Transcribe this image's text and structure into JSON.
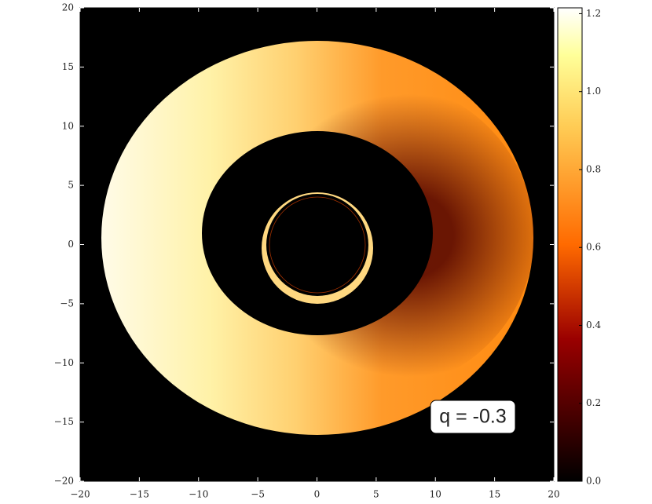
{
  "chart_data": {
    "type": "image",
    "annotation": "q = -0.3",
    "colormap": "afmhot",
    "xlim": [
      -20,
      20
    ],
    "ylim": [
      -20,
      20
    ],
    "xticks": [
      {
        "value": -20,
        "label": "−20"
      },
      {
        "value": -15,
        "label": "−15"
      },
      {
        "value": -10,
        "label": "−10"
      },
      {
        "value": -5,
        "label": "−5"
      },
      0,
      5,
      10,
      15,
      20
    ],
    "yticks": [
      {
        "value": -20,
        "label": "−20"
      },
      {
        "value": -15,
        "label": "−15"
      },
      {
        "value": -10,
        "label": "−10"
      },
      {
        "value": -5,
        "label": "−5"
      },
      0,
      5,
      10,
      15,
      20
    ],
    "clim": [
      0,
      1.215
    ],
    "cticks": [
      {
        "value": 0,
        "label": "0.0"
      },
      0.2,
      0.4,
      0.6,
      0.8,
      {
        "value": 1,
        "label": "1.0"
      },
      1.2
    ]
  }
}
